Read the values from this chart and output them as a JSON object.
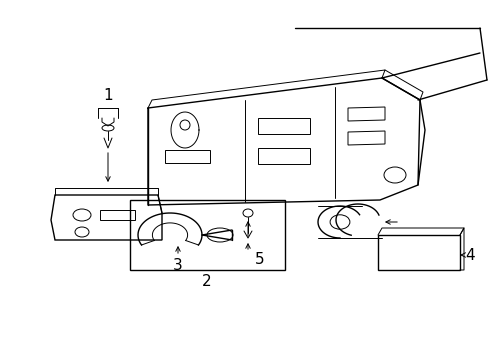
{
  "background_color": "#ffffff",
  "line_color": "#000000",
  "fig_width": 4.89,
  "fig_height": 3.6,
  "dpi": 100,
  "lw": 1.0,
  "tlw": 0.7
}
